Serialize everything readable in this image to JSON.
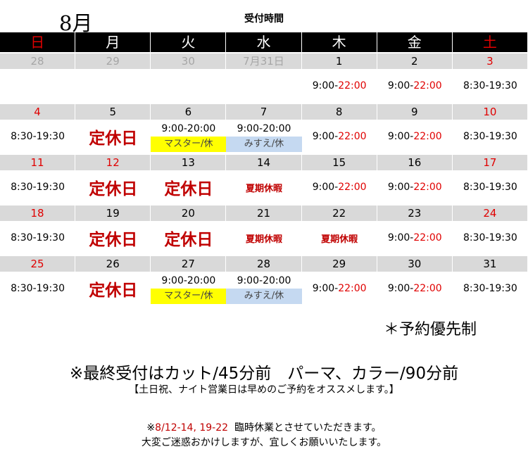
{
  "title": {
    "month": "8月",
    "subtitle": "受付時間"
  },
  "colors": {
    "red": "#e00000",
    "dark_red": "#c00000",
    "header_bg": "#000000",
    "date_bg": "#d9d9d9",
    "master_bg": "#ffff00",
    "misue_bg": "#c5d9f1"
  },
  "weekdays": [
    {
      "label": "日",
      "color": "#e00000"
    },
    {
      "label": "月",
      "color": "#ffffff"
    },
    {
      "label": "火",
      "color": "#ffffff"
    },
    {
      "label": "水",
      "color": "#ffffff"
    },
    {
      "label": "木",
      "color": "#ffffff"
    },
    {
      "label": "金",
      "color": "#ffffff"
    },
    {
      "label": "土",
      "color": "#e00000"
    }
  ],
  "weeks": [
    [
      {
        "date": "28",
        "date_color": "#a6a6a6"
      },
      {
        "date": "29",
        "date_color": "#a6a6a6"
      },
      {
        "date": "30",
        "date_color": "#a6a6a6"
      },
      {
        "date": "7月31日",
        "date_color": "#a6a6a6"
      },
      {
        "date": "1",
        "type": "time",
        "start": "9:00-",
        "end": "22:00",
        "end_red": true
      },
      {
        "date": "2",
        "type": "time",
        "start": "9:00-",
        "end": "22:00",
        "end_red": true
      },
      {
        "date": "3",
        "date_color": "#e00000",
        "type": "time",
        "start": "8:30-",
        "end": "19:30"
      }
    ],
    [
      {
        "date": "4",
        "date_color": "#e00000",
        "type": "time",
        "start": "8:30-",
        "end": "19:30"
      },
      {
        "date": "5",
        "type": "closed",
        "text": "定休日"
      },
      {
        "date": "6",
        "type": "time",
        "start": "9:00-",
        "end": "20:00",
        "sub": "マスター/休",
        "sub_bg": "#ffff00"
      },
      {
        "date": "7",
        "type": "time",
        "start": "9:00-",
        "end": "20:00",
        "sub": "みすえ/休",
        "sub_bg": "#c5d9f1"
      },
      {
        "date": "8",
        "type": "time",
        "start": "9:00-",
        "end": "22:00",
        "end_red": true
      },
      {
        "date": "9",
        "type": "time",
        "start": "9:00-",
        "end": "22:00",
        "end_red": true
      },
      {
        "date": "10",
        "date_color": "#e00000",
        "type": "time",
        "start": "8:30-",
        "end": "19:30"
      }
    ],
    [
      {
        "date": "11",
        "date_color": "#e00000",
        "type": "time",
        "start": "8:30-",
        "end": "19:30"
      },
      {
        "date": "12",
        "date_color": "#e00000",
        "type": "closed",
        "text": "定休日"
      },
      {
        "date": "13",
        "type": "closed",
        "text": "定休日"
      },
      {
        "date": "14",
        "type": "holiday",
        "text": "夏期休暇"
      },
      {
        "date": "15",
        "type": "time",
        "start": "9:00-",
        "end": "22:00",
        "end_red": true
      },
      {
        "date": "16",
        "type": "time",
        "start": "9:00-",
        "end": "22:00",
        "end_red": true
      },
      {
        "date": "17",
        "date_color": "#e00000",
        "type": "time",
        "start": "8:30-",
        "end": "19:30"
      }
    ],
    [
      {
        "date": "18",
        "date_color": "#e00000",
        "type": "time",
        "start": "8:30-",
        "end": "19:30"
      },
      {
        "date": "19",
        "type": "closed",
        "text": "定休日"
      },
      {
        "date": "20",
        "type": "closed",
        "text": "定休日"
      },
      {
        "date": "21",
        "type": "holiday",
        "text": "夏期休暇"
      },
      {
        "date": "22",
        "type": "holiday",
        "text": "夏期休暇"
      },
      {
        "date": "23",
        "type": "time",
        "start": "9:00-",
        "end": "22:00",
        "end_red": true
      },
      {
        "date": "24",
        "date_color": "#e00000",
        "type": "time",
        "start": "8:30-",
        "end": "19:30"
      }
    ],
    [
      {
        "date": "25",
        "date_color": "#e00000",
        "type": "time",
        "start": "8:30-",
        "end": "19:30"
      },
      {
        "date": "26",
        "type": "closed",
        "text": "定休日"
      },
      {
        "date": "27",
        "type": "time",
        "start": "9:00-",
        "end": "20:00",
        "sub": "マスター/休",
        "sub_bg": "#ffff00"
      },
      {
        "date": "28",
        "type": "time",
        "start": "9:00-",
        "end": "20:00",
        "sub": "みすえ/休",
        "sub_bg": "#c5d9f1"
      },
      {
        "date": "29",
        "type": "time",
        "start": "9:00-",
        "end": "22:00",
        "end_red": true
      },
      {
        "date": "30",
        "type": "time",
        "start": "9:00-",
        "end": "22:00",
        "end_red": true
      },
      {
        "date": "31",
        "type": "time",
        "start": "8:30-",
        "end": "19:30"
      }
    ]
  ],
  "notes": {
    "reservation": "＊予約優先制",
    "last_reception": "※最終受付はカット/45分前　パーマ、カラー/90分前",
    "recommend": "【土日祝、ナイト営業日は早めのご予約をオススメします。】",
    "temp_close_mark": "※",
    "temp_close_dates": "8/12-14, 19-22",
    "temp_close_text": "臨時休業とさせていただきます。",
    "apology": "大変ご迷惑おかけしますが、宜しくお願いいたします。"
  }
}
